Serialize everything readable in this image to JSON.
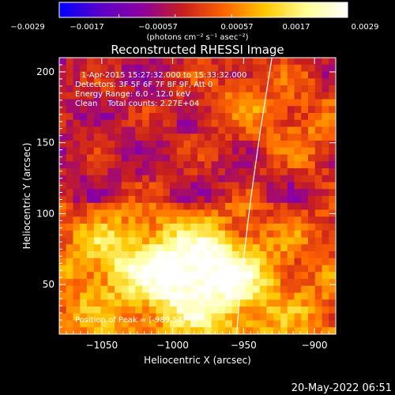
{
  "chart_data": {
    "type": "heatmap",
    "title": "Reconstructed RHESSI Image",
    "xlabel": "Heliocentric X (arcsec)",
    "ylabel": "Heliocentric Y (arcsec)",
    "xlim": [
      -1080,
      -885
    ],
    "ylim": [
      15,
      210
    ],
    "x_ticks": [
      -1050,
      -1000,
      -950,
      -900
    ],
    "y_ticks": [
      50,
      100,
      150,
      200
    ],
    "x_tick_labels": [
      "−1050",
      "−1000",
      "−950",
      "−900"
    ],
    "y_tick_labels": [
      "50",
      "100",
      "150",
      "200"
    ],
    "colorbar": {
      "range": [
        -0.0029,
        0.0029
      ],
      "ticks": [
        -0.0029,
        -0.0017,
        -0.00057,
        0.00057,
        0.0017,
        0.0029
      ],
      "tick_labels": [
        "−0.0029",
        "−0.0017",
        "−0.00057",
        "0.00057",
        "0.0017",
        "0.0029"
      ],
      "unit_label": "(photons cm⁻² s⁻¹ asec⁻²)",
      "colors": [
        "#0000ff",
        "#5a00c8",
        "#8c00a0",
        "#c81e1e",
        "#ff6400",
        "#ffc800",
        "#ffff96",
        "#ffffff"
      ]
    },
    "annotations": {
      "time": "1-Apr-2015 15:27:32.000 to 15:33:32.000",
      "detectors": "Detectors: 3F 5F 6F 7F 8F 9F, Att 0",
      "energy": "Energy Range: 6.0 - 12.0 keV",
      "clean": "Clean    Total counts: 2.27E+04",
      "peak": "Position of Peak = [-989,54]"
    },
    "hotspots": [
      {
        "x": -995,
        "y": 60,
        "intensity": 0.0029
      },
      {
        "x": -1040,
        "y": 70,
        "intensity": 0.0015
      },
      {
        "x": -960,
        "y": 55,
        "intensity": 0.0022
      },
      {
        "x": -905,
        "y": 160,
        "intensity": 0.0012
      },
      {
        "x": -950,
        "y": 180,
        "intensity": 0.0011
      }
    ],
    "limb_curve": [
      {
        "x": -955,
        "y": 15
      },
      {
        "x": -951,
        "y": 60
      },
      {
        "x": -945,
        "y": 110
      },
      {
        "x": -938,
        "y": 160
      },
      {
        "x": -930,
        "y": 210
      }
    ]
  },
  "footer": {
    "date": "20-May-2022 06:51"
  }
}
